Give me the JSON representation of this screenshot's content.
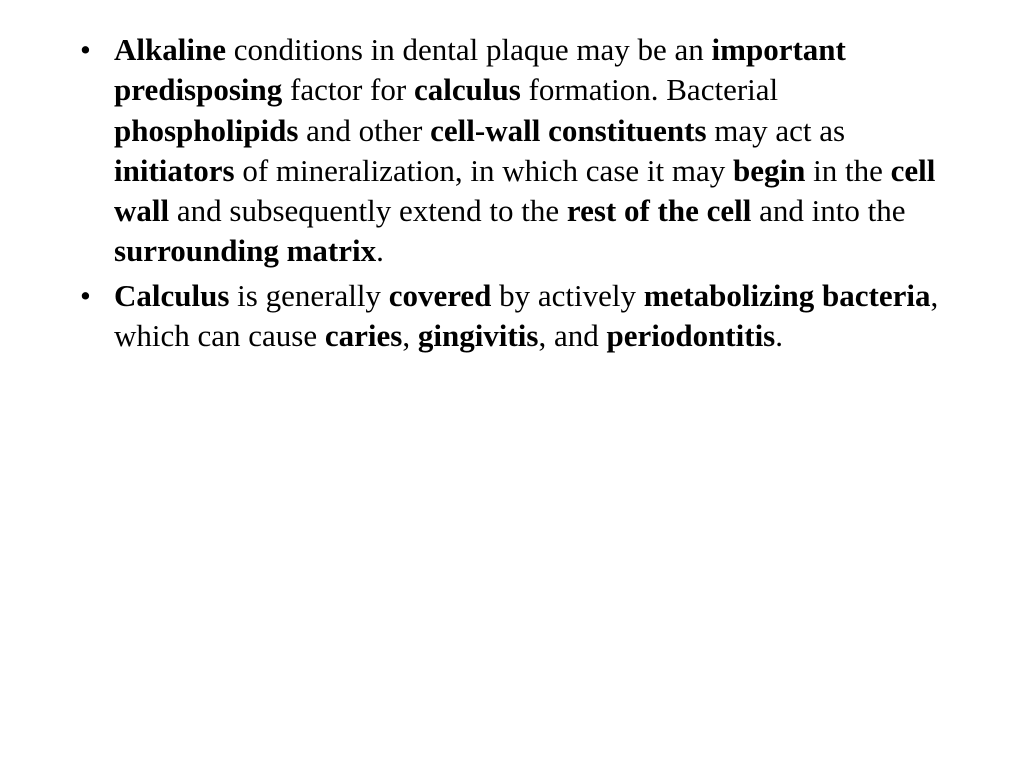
{
  "background_color": "#ffffff",
  "text_color": "#000000",
  "font_family": "Times New Roman",
  "font_size_pt": 24,
  "bullets": [
    {
      "segments": [
        {
          "text": "Alkaline",
          "bold": true
        },
        {
          "text": " conditions in dental plaque may be an ",
          "bold": false
        },
        {
          "text": "important predisposing",
          "bold": true
        },
        {
          "text": " factor for ",
          "bold": false
        },
        {
          "text": "calculus",
          "bold": true
        },
        {
          "text": " formation. Bacterial ",
          "bold": false
        },
        {
          "text": "phospholipids",
          "bold": true
        },
        {
          "text": " and other ",
          "bold": false
        },
        {
          "text": "cell-wall constituents",
          "bold": true
        },
        {
          "text": " may act as ",
          "bold": false
        },
        {
          "text": "initiators",
          "bold": true
        },
        {
          "text": " of mineralization, in which case it may ",
          "bold": false
        },
        {
          "text": "begin",
          "bold": true
        },
        {
          "text": " in the ",
          "bold": false
        },
        {
          "text": "cell wall",
          "bold": true
        },
        {
          "text": " and subsequently extend to the ",
          "bold": false
        },
        {
          "text": "rest of the cell",
          "bold": true
        },
        {
          "text": " and into the ",
          "bold": false
        },
        {
          "text": "surrounding matrix",
          "bold": true
        },
        {
          "text": ".",
          "bold": false
        }
      ]
    },
    {
      "segments": [
        {
          "text": "Calculus",
          "bold": true
        },
        {
          "text": " is generally ",
          "bold": false
        },
        {
          "text": "covered",
          "bold": true
        },
        {
          "text": " by actively ",
          "bold": false
        },
        {
          "text": "metabolizing bacteria",
          "bold": true
        },
        {
          "text": ", which can cause ",
          "bold": false
        },
        {
          "text": "caries",
          "bold": true
        },
        {
          "text": ", ",
          "bold": false
        },
        {
          "text": "gingivitis",
          "bold": true
        },
        {
          "text": ", and ",
          "bold": false
        },
        {
          "text": "periodontitis",
          "bold": true
        },
        {
          "text": ".",
          "bold": false
        }
      ]
    }
  ]
}
